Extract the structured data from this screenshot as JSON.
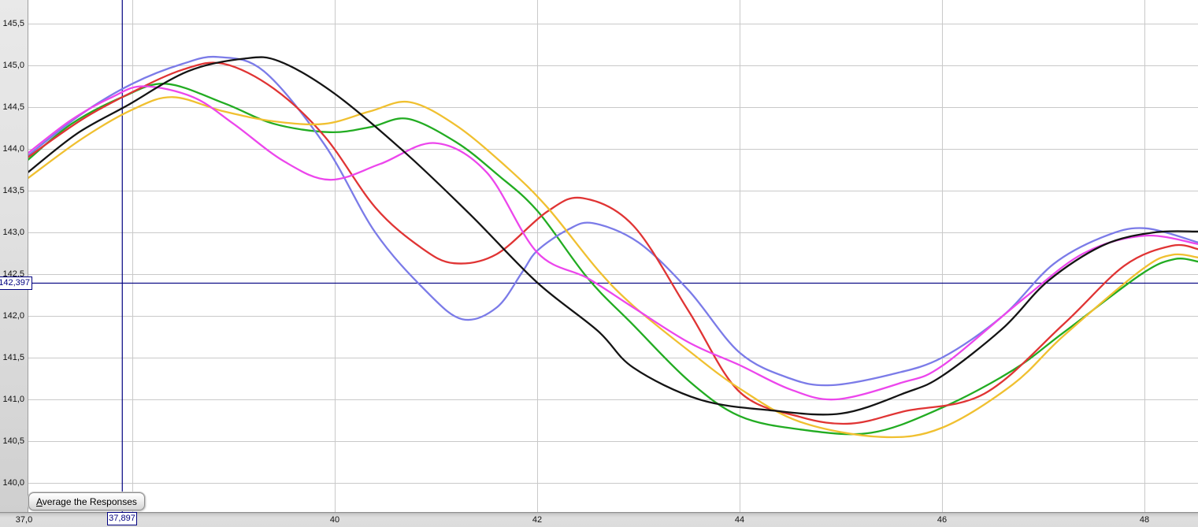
{
  "controls": {
    "average_button_label": "Average the Responses"
  },
  "chart_data": {
    "type": "line",
    "title": "",
    "xlabel": "",
    "ylabel": "",
    "x_range": [
      36.97,
      48.53
    ],
    "y_range_visible": [
      139.85,
      145.78
    ],
    "grid": true,
    "grid_color": "#c9c9c9",
    "plot_bg": "#ffffff",
    "y_ticks": [
      {
        "v": 145.5,
        "label": "145,5"
      },
      {
        "v": 145.0,
        "label": "145,0"
      },
      {
        "v": 144.5,
        "label": "144,5"
      },
      {
        "v": 144.0,
        "label": "144,0"
      },
      {
        "v": 143.5,
        "label": "143,5"
      },
      {
        "v": 143.0,
        "label": "143,0"
      },
      {
        "v": 142.5,
        "label": "142,5"
      },
      {
        "v": 142.0,
        "label": "142,0"
      },
      {
        "v": 141.5,
        "label": "141,5"
      },
      {
        "v": 141.0,
        "label": "141,0"
      },
      {
        "v": 140.5,
        "label": "140,5"
      },
      {
        "v": 140.0,
        "label": "140,0"
      }
    ],
    "x_gridlines": [
      38,
      40,
      42,
      44,
      46,
      48
    ],
    "x_ticks": [
      {
        "v": 36.93,
        "label": "37,0"
      },
      {
        "v": 40,
        "label": "40"
      },
      {
        "v": 42,
        "label": "42"
      },
      {
        "v": 44,
        "label": "44"
      },
      {
        "v": 46,
        "label": "46"
      },
      {
        "v": 48,
        "label": "48"
      }
    ],
    "crosshair": {
      "x": 37.897,
      "y": 142.397,
      "x_label": "37,897",
      "y_label": "142,397",
      "color": "#000080"
    },
    "series": [
      {
        "name": "green",
        "color": "#22ac22",
        "points": [
          [
            36.97,
            143.87
          ],
          [
            37.4,
            144.3
          ],
          [
            37.9,
            144.62
          ],
          [
            38.33,
            144.78
          ],
          [
            38.9,
            144.55
          ],
          [
            39.4,
            144.3
          ],
          [
            39.95,
            144.2
          ],
          [
            40.35,
            144.26
          ],
          [
            40.72,
            144.36
          ],
          [
            41.2,
            144.08
          ],
          [
            41.6,
            143.7
          ],
          [
            42.0,
            143.26
          ],
          [
            42.5,
            142.45
          ],
          [
            42.95,
            141.89
          ],
          [
            43.5,
            141.22
          ],
          [
            44.0,
            140.8
          ],
          [
            44.6,
            140.64
          ],
          [
            45.3,
            140.6
          ],
          [
            46.0,
            140.9
          ],
          [
            46.7,
            141.35
          ],
          [
            47.2,
            141.8
          ],
          [
            47.97,
            142.5
          ],
          [
            48.3,
            142.68
          ],
          [
            48.53,
            142.65
          ]
        ]
      },
      {
        "name": "blue",
        "color": "#7b7be8",
        "points": [
          [
            36.97,
            143.92
          ],
          [
            37.5,
            144.42
          ],
          [
            38.0,
            144.78
          ],
          [
            38.5,
            145.02
          ],
          [
            38.85,
            145.1
          ],
          [
            39.3,
            144.93
          ],
          [
            39.9,
            144.05
          ],
          [
            40.4,
            143.0
          ],
          [
            40.9,
            142.3
          ],
          [
            41.26,
            141.96
          ],
          [
            41.6,
            142.1
          ],
          [
            41.85,
            142.52
          ],
          [
            42.0,
            142.78
          ],
          [
            42.3,
            143.03
          ],
          [
            42.55,
            143.11
          ],
          [
            43.0,
            142.88
          ],
          [
            43.5,
            142.3
          ],
          [
            44.0,
            141.56
          ],
          [
            44.5,
            141.25
          ],
          [
            44.9,
            141.17
          ],
          [
            45.5,
            141.3
          ],
          [
            46.0,
            141.5
          ],
          [
            46.6,
            142.0
          ],
          [
            47.1,
            142.62
          ],
          [
            47.6,
            142.95
          ],
          [
            48.0,
            143.05
          ],
          [
            48.53,
            142.88
          ]
        ]
      },
      {
        "name": "red",
        "color": "#e03434",
        "points": [
          [
            36.97,
            143.9
          ],
          [
            37.5,
            144.35
          ],
          [
            38.0,
            144.68
          ],
          [
            38.5,
            144.95
          ],
          [
            38.9,
            145.02
          ],
          [
            39.4,
            144.72
          ],
          [
            39.9,
            144.15
          ],
          [
            40.4,
            143.3
          ],
          [
            40.85,
            142.82
          ],
          [
            41.18,
            142.63
          ],
          [
            41.6,
            142.74
          ],
          [
            42.1,
            143.25
          ],
          [
            42.45,
            143.41
          ],
          [
            42.95,
            143.08
          ],
          [
            43.5,
            142.05
          ],
          [
            44.0,
            141.09
          ],
          [
            44.6,
            140.79
          ],
          [
            45.1,
            140.71
          ],
          [
            45.64,
            140.86
          ],
          [
            46.42,
            141.07
          ],
          [
            47.2,
            141.9
          ],
          [
            47.8,
            142.6
          ],
          [
            48.27,
            142.84
          ],
          [
            48.53,
            142.8
          ]
        ]
      },
      {
        "name": "yellow",
        "color": "#f0c030",
        "points": [
          [
            36.97,
            143.65
          ],
          [
            37.5,
            144.12
          ],
          [
            38.0,
            144.47
          ],
          [
            38.4,
            144.62
          ],
          [
            38.9,
            144.45
          ],
          [
            39.4,
            144.33
          ],
          [
            39.9,
            144.3
          ],
          [
            40.35,
            144.45
          ],
          [
            40.74,
            144.56
          ],
          [
            41.2,
            144.28
          ],
          [
            41.7,
            143.78
          ],
          [
            42.1,
            143.3
          ],
          [
            42.6,
            142.55
          ],
          [
            42.95,
            142.12
          ],
          [
            43.5,
            141.58
          ],
          [
            44.0,
            141.13
          ],
          [
            44.6,
            140.73
          ],
          [
            45.4,
            140.55
          ],
          [
            46.0,
            140.66
          ],
          [
            46.7,
            141.18
          ],
          [
            47.2,
            141.76
          ],
          [
            47.97,
            142.55
          ],
          [
            48.27,
            142.73
          ],
          [
            48.53,
            142.7
          ]
        ]
      },
      {
        "name": "magenta",
        "color": "#ec46ec",
        "points": [
          [
            36.97,
            143.95
          ],
          [
            37.4,
            144.35
          ],
          [
            37.8,
            144.62
          ],
          [
            38.11,
            144.75
          ],
          [
            38.6,
            144.62
          ],
          [
            39.0,
            144.3
          ],
          [
            39.5,
            143.85
          ],
          [
            39.95,
            143.63
          ],
          [
            40.45,
            143.82
          ],
          [
            40.99,
            144.07
          ],
          [
            41.5,
            143.72
          ],
          [
            42.0,
            142.76
          ],
          [
            42.5,
            142.45
          ],
          [
            42.95,
            142.1
          ],
          [
            43.5,
            141.68
          ],
          [
            44.0,
            141.41
          ],
          [
            44.5,
            141.12
          ],
          [
            44.95,
            141.0
          ],
          [
            45.6,
            141.2
          ],
          [
            46.0,
            141.4
          ],
          [
            46.8,
            142.2
          ],
          [
            47.4,
            142.75
          ],
          [
            48.0,
            142.96
          ],
          [
            48.53,
            142.86
          ]
        ]
      },
      {
        "name": "black",
        "color": "#141414",
        "points": [
          [
            36.97,
            143.72
          ],
          [
            37.45,
            144.18
          ],
          [
            37.95,
            144.52
          ],
          [
            38.55,
            144.93
          ],
          [
            39.1,
            145.08
          ],
          [
            39.45,
            145.05
          ],
          [
            40.0,
            144.66
          ],
          [
            40.7,
            143.95
          ],
          [
            41.35,
            143.2
          ],
          [
            42.0,
            142.4
          ],
          [
            42.6,
            141.82
          ],
          [
            42.95,
            141.38
          ],
          [
            43.6,
            141.0
          ],
          [
            44.3,
            140.87
          ],
          [
            45.0,
            140.83
          ],
          [
            45.64,
            141.08
          ],
          [
            46.0,
            141.28
          ],
          [
            46.6,
            141.85
          ],
          [
            47.05,
            142.42
          ],
          [
            47.6,
            142.85
          ],
          [
            48.1,
            143.0
          ],
          [
            48.53,
            143.01
          ]
        ]
      }
    ]
  }
}
